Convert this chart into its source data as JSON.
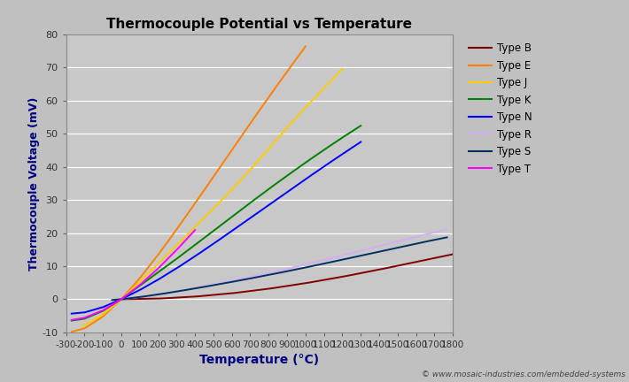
{
  "title": "Thermocouple Potential vs Temperature",
  "xlabel": "Temperature (°C)",
  "ylabel": "Thermocouple Voltage (mV)",
  "xlim": [
    -300,
    1800
  ],
  "ylim": [
    -10,
    80
  ],
  "xticks": [
    -300,
    -200,
    -100,
    0,
    100,
    200,
    300,
    400,
    500,
    600,
    700,
    800,
    900,
    1000,
    1100,
    1200,
    1300,
    1400,
    1500,
    1600,
    1700,
    1800
  ],
  "yticks": [
    -10,
    0,
    10,
    20,
    30,
    40,
    50,
    60,
    70,
    80
  ],
  "background_color": "#c0c0c0",
  "plot_bg_color": "#c8c8c8",
  "watermark": "© www.mosaic-industries.com/embedded-systems",
  "series": [
    {
      "label": "Type B",
      "color": "#800000",
      "temps": [
        0,
        200,
        400,
        600,
        800,
        1000,
        1200,
        1400,
        1600,
        1800
      ],
      "voltages": [
        0.0,
        0.178,
        0.787,
        1.792,
        3.154,
        4.834,
        6.786,
        8.952,
        11.263,
        13.591
      ]
    },
    {
      "label": "Type E",
      "color": "#ff8000",
      "temps": [
        -270,
        -200,
        -100,
        0,
        100,
        200,
        300,
        400,
        500,
        600,
        700,
        800,
        900,
        1000
      ],
      "voltages": [
        -9.835,
        -8.825,
        -5.237,
        0.0,
        6.319,
        13.421,
        21.036,
        28.946,
        37.005,
        45.093,
        53.112,
        61.017,
        68.787,
        76.373
      ]
    },
    {
      "label": "Type J",
      "color": "#ffcc00",
      "temps": [
        -210,
        -100,
        0,
        100,
        200,
        300,
        400,
        500,
        600,
        700,
        800,
        900,
        1000,
        1100,
        1200
      ],
      "voltages": [
        -8.095,
        -4.633,
        0.0,
        5.269,
        10.779,
        16.327,
        21.848,
        27.393,
        33.102,
        39.132,
        45.494,
        51.877,
        57.953,
        63.792,
        69.553
      ]
    },
    {
      "label": "Type K",
      "color": "#008000",
      "temps": [
        -270,
        -200,
        -100,
        0,
        100,
        200,
        300,
        400,
        500,
        600,
        700,
        800,
        900,
        1000,
        1100,
        1200,
        1300
      ],
      "voltages": [
        -6.458,
        -5.891,
        -3.554,
        0.0,
        4.096,
        8.138,
        12.209,
        16.397,
        20.644,
        24.905,
        29.129,
        33.275,
        37.326,
        41.276,
        45.119,
        48.838,
        52.41
      ]
    },
    {
      "label": "Type N",
      "color": "#0000ff",
      "temps": [
        -270,
        -200,
        -100,
        0,
        100,
        200,
        300,
        400,
        500,
        600,
        700,
        800,
        900,
        1000,
        1100,
        1200,
        1300
      ],
      "voltages": [
        -4.345,
        -3.99,
        -2.407,
        0.0,
        2.774,
        5.913,
        9.341,
        12.974,
        16.748,
        20.613,
        24.527,
        28.455,
        32.371,
        36.256,
        40.087,
        43.846,
        47.513
      ]
    },
    {
      "label": "Type R",
      "color": "#d0b0f0",
      "temps": [
        -50,
        0,
        100,
        200,
        300,
        400,
        500,
        600,
        700,
        800,
        900,
        1000,
        1100,
        1200,
        1300,
        1400,
        1500,
        1600,
        1700,
        1768
      ],
      "voltages": [
        -0.226,
        0.0,
        0.647,
        1.469,
        2.401,
        3.408,
        4.471,
        5.583,
        6.743,
        7.95,
        9.205,
        10.506,
        11.85,
        13.228,
        14.629,
        16.04,
        17.451,
        18.849,
        20.222,
        21.101
      ]
    },
    {
      "label": "Type S",
      "color": "#003060",
      "temps": [
        -50,
        0,
        100,
        200,
        300,
        400,
        500,
        600,
        700,
        800,
        900,
        1000,
        1100,
        1200,
        1300,
        1400,
        1500,
        1600,
        1700,
        1768
      ],
      "voltages": [
        -0.236,
        0.0,
        0.646,
        1.441,
        2.323,
        3.259,
        4.233,
        5.239,
        6.275,
        7.345,
        8.449,
        9.587,
        10.757,
        11.951,
        13.159,
        14.373,
        15.582,
        16.777,
        17.942,
        18.693
      ]
    },
    {
      "label": "Type T",
      "color": "#ff00ff",
      "temps": [
        -270,
        -200,
        -100,
        0,
        100,
        200,
        300,
        400
      ],
      "voltages": [
        -6.258,
        -5.603,
        -3.379,
        0.0,
        4.279,
        9.288,
        14.862,
        20.872
      ]
    }
  ]
}
